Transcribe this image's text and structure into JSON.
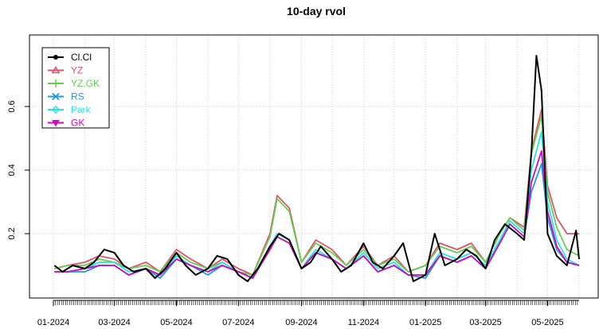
{
  "chart_data": {
    "type": "line",
    "title": "10-day rvol",
    "xlabel": "",
    "ylabel": "",
    "x_ticks": [
      "01-2024",
      "03-2024",
      "05-2024",
      "07-2024",
      "09-2024",
      "11-2024",
      "01-2025",
      "03-2025",
      "05-2025"
    ],
    "x_range": [
      "2024-01-01",
      "2025-06-01"
    ],
    "y_ticks": [
      "0.2",
      "0.4",
      "0.6"
    ],
    "ylim": [
      0.03,
      0.78
    ],
    "grid": true,
    "legend_position": "top-left",
    "series": [
      {
        "name": "Cl.Cl",
        "color": "#000000",
        "key": "cc",
        "points": [
          [
            "2024-01-02",
            0.1
          ],
          [
            "2024-01-10",
            0.08
          ],
          [
            "2024-01-20",
            0.1
          ],
          [
            "2024-02-01",
            0.09
          ],
          [
            "2024-02-10",
            0.11
          ],
          [
            "2024-02-20",
            0.15
          ],
          [
            "2024-03-01",
            0.14
          ],
          [
            "2024-03-10",
            0.1
          ],
          [
            "2024-03-20",
            0.08
          ],
          [
            "2024-04-01",
            0.09
          ],
          [
            "2024-04-10",
            0.06
          ],
          [
            "2024-04-20",
            0.09
          ],
          [
            "2024-05-01",
            0.14
          ],
          [
            "2024-05-10",
            0.1
          ],
          [
            "2024-05-20",
            0.07
          ],
          [
            "2024-06-01",
            0.09
          ],
          [
            "2024-06-10",
            0.13
          ],
          [
            "2024-06-20",
            0.12
          ],
          [
            "2024-07-01",
            0.07
          ],
          [
            "2024-07-10",
            0.05
          ],
          [
            "2024-07-20",
            0.09
          ],
          [
            "2024-08-01",
            0.16
          ],
          [
            "2024-08-10",
            0.2
          ],
          [
            "2024-08-20",
            0.18
          ],
          [
            "2024-09-01",
            0.09
          ],
          [
            "2024-09-10",
            0.11
          ],
          [
            "2024-09-20",
            0.16
          ],
          [
            "2024-10-01",
            0.12
          ],
          [
            "2024-10-10",
            0.08
          ],
          [
            "2024-10-20",
            0.1
          ],
          [
            "2024-11-01",
            0.17
          ],
          [
            "2024-11-10",
            0.11
          ],
          [
            "2024-11-20",
            0.09
          ],
          [
            "2024-12-01",
            0.13
          ],
          [
            "2024-12-10",
            0.17
          ],
          [
            "2024-12-20",
            0.05
          ],
          [
            "2025-01-01",
            0.07
          ],
          [
            "2025-01-10",
            0.2
          ],
          [
            "2025-01-20",
            0.1
          ],
          [
            "2025-02-01",
            0.12
          ],
          [
            "2025-02-10",
            0.15
          ],
          [
            "2025-02-20",
            0.13
          ],
          [
            "2025-03-01",
            0.09
          ],
          [
            "2025-03-10",
            0.18
          ],
          [
            "2025-03-20",
            0.23
          ],
          [
            "2025-04-01",
            0.2
          ],
          [
            "2025-04-08",
            0.18
          ],
          [
            "2025-04-15",
            0.45
          ],
          [
            "2025-04-20",
            0.76
          ],
          [
            "2025-04-25",
            0.65
          ],
          [
            "2025-05-01",
            0.2
          ],
          [
            "2025-05-10",
            0.13
          ],
          [
            "2025-05-20",
            0.1
          ],
          [
            "2025-05-29",
            0.21
          ],
          [
            "2025-06-01",
            0.12
          ]
        ]
      },
      {
        "name": "YZ",
        "color": "#DF536B",
        "key": "yz",
        "points": [
          [
            "2024-01-02",
            0.09
          ],
          [
            "2024-01-15",
            0.1
          ],
          [
            "2024-02-01",
            0.11
          ],
          [
            "2024-02-15",
            0.13
          ],
          [
            "2024-03-01",
            0.12
          ],
          [
            "2024-03-15",
            0.09
          ],
          [
            "2024-04-01",
            0.11
          ],
          [
            "2024-04-15",
            0.08
          ],
          [
            "2024-05-01",
            0.15
          ],
          [
            "2024-05-15",
            0.12
          ],
          [
            "2024-06-01",
            0.09
          ],
          [
            "2024-06-15",
            0.12
          ],
          [
            "2024-07-01",
            0.09
          ],
          [
            "2024-07-15",
            0.07
          ],
          [
            "2024-08-01",
            0.2
          ],
          [
            "2024-08-08",
            0.32
          ],
          [
            "2024-08-20",
            0.28
          ],
          [
            "2024-09-01",
            0.11
          ],
          [
            "2024-09-15",
            0.18
          ],
          [
            "2024-10-01",
            0.15
          ],
          [
            "2024-10-15",
            0.1
          ],
          [
            "2024-11-01",
            0.16
          ],
          [
            "2024-11-15",
            0.1
          ],
          [
            "2024-12-01",
            0.13
          ],
          [
            "2024-12-15",
            0.08
          ],
          [
            "2025-01-01",
            0.1
          ],
          [
            "2025-01-15",
            0.17
          ],
          [
            "2025-02-01",
            0.15
          ],
          [
            "2025-02-15",
            0.17
          ],
          [
            "2025-03-01",
            0.11
          ],
          [
            "2025-03-15",
            0.2
          ],
          [
            "2025-03-25",
            0.25
          ],
          [
            "2025-04-08",
            0.22
          ],
          [
            "2025-04-15",
            0.46
          ],
          [
            "2025-04-25",
            0.59
          ],
          [
            "2025-05-01",
            0.35
          ],
          [
            "2025-05-10",
            0.25
          ],
          [
            "2025-05-20",
            0.2
          ],
          [
            "2025-06-01",
            0.2
          ]
        ]
      },
      {
        "name": "YZ.GK",
        "color": "#61D04F",
        "key": "yzgk",
        "points": [
          [
            "2024-01-02",
            0.09
          ],
          [
            "2024-01-15",
            0.1
          ],
          [
            "2024-02-01",
            0.1
          ],
          [
            "2024-02-15",
            0.12
          ],
          [
            "2024-03-01",
            0.11
          ],
          [
            "2024-03-15",
            0.09
          ],
          [
            "2024-04-01",
            0.1
          ],
          [
            "2024-04-15",
            0.08
          ],
          [
            "2024-05-01",
            0.14
          ],
          [
            "2024-05-15",
            0.11
          ],
          [
            "2024-06-01",
            0.09
          ],
          [
            "2024-06-15",
            0.11
          ],
          [
            "2024-07-01",
            0.08
          ],
          [
            "2024-07-15",
            0.07
          ],
          [
            "2024-08-01",
            0.19
          ],
          [
            "2024-08-08",
            0.31
          ],
          [
            "2024-08-20",
            0.27
          ],
          [
            "2024-09-01",
            0.11
          ],
          [
            "2024-09-15",
            0.17
          ],
          [
            "2024-10-01",
            0.14
          ],
          [
            "2024-10-15",
            0.1
          ],
          [
            "2024-11-01",
            0.15
          ],
          [
            "2024-11-15",
            0.1
          ],
          [
            "2024-12-01",
            0.12
          ],
          [
            "2024-12-15",
            0.08
          ],
          [
            "2025-01-01",
            0.1
          ],
          [
            "2025-01-15",
            0.16
          ],
          [
            "2025-02-01",
            0.14
          ],
          [
            "2025-02-15",
            0.16
          ],
          [
            "2025-03-01",
            0.11
          ],
          [
            "2025-03-15",
            0.2
          ],
          [
            "2025-03-25",
            0.25
          ],
          [
            "2025-04-08",
            0.21
          ],
          [
            "2025-04-15",
            0.45
          ],
          [
            "2025-04-25",
            0.57
          ],
          [
            "2025-05-01",
            0.33
          ],
          [
            "2025-05-10",
            0.22
          ],
          [
            "2025-05-20",
            0.15
          ],
          [
            "2025-06-01",
            0.13
          ]
        ]
      },
      {
        "name": "RS",
        "color": "#2297E6",
        "key": "rs",
        "points": [
          [
            "2024-01-02",
            0.08
          ],
          [
            "2024-01-15",
            0.08
          ],
          [
            "2024-02-01",
            0.08
          ],
          [
            "2024-02-15",
            0.1
          ],
          [
            "2024-03-01",
            0.1
          ],
          [
            "2024-03-15",
            0.07
          ],
          [
            "2024-04-01",
            0.09
          ],
          [
            "2024-04-15",
            0.06
          ],
          [
            "2024-05-01",
            0.12
          ],
          [
            "2024-05-15",
            0.1
          ],
          [
            "2024-06-01",
            0.07
          ],
          [
            "2024-06-15",
            0.1
          ],
          [
            "2024-07-01",
            0.08
          ],
          [
            "2024-07-15",
            0.06
          ],
          [
            "2024-08-01",
            0.15
          ],
          [
            "2024-08-08",
            0.19
          ],
          [
            "2024-08-20",
            0.17
          ],
          [
            "2024-09-01",
            0.09
          ],
          [
            "2024-09-15",
            0.14
          ],
          [
            "2024-10-01",
            0.12
          ],
          [
            "2024-10-15",
            0.09
          ],
          [
            "2024-11-01",
            0.13
          ],
          [
            "2024-11-15",
            0.08
          ],
          [
            "2024-12-01",
            0.1
          ],
          [
            "2024-12-15",
            0.07
          ],
          [
            "2025-01-01",
            0.06
          ],
          [
            "2025-01-15",
            0.13
          ],
          [
            "2025-02-01",
            0.11
          ],
          [
            "2025-02-15",
            0.13
          ],
          [
            "2025-03-01",
            0.09
          ],
          [
            "2025-03-15",
            0.17
          ],
          [
            "2025-03-25",
            0.23
          ],
          [
            "2025-04-08",
            0.19
          ],
          [
            "2025-04-15",
            0.33
          ],
          [
            "2025-04-25",
            0.42
          ],
          [
            "2025-05-01",
            0.25
          ],
          [
            "2025-05-10",
            0.15
          ],
          [
            "2025-05-20",
            0.11
          ],
          [
            "2025-06-01",
            0.1
          ]
        ]
      },
      {
        "name": "Park",
        "color": "#28E2E5",
        "key": "park",
        "points": [
          [
            "2024-01-02",
            0.08
          ],
          [
            "2024-01-15",
            0.08
          ],
          [
            "2024-02-01",
            0.09
          ],
          [
            "2024-02-15",
            0.11
          ],
          [
            "2024-03-01",
            0.11
          ],
          [
            "2024-03-15",
            0.08
          ],
          [
            "2024-04-01",
            0.09
          ],
          [
            "2024-04-15",
            0.07
          ],
          [
            "2024-05-01",
            0.13
          ],
          [
            "2024-05-15",
            0.1
          ],
          [
            "2024-06-01",
            0.08
          ],
          [
            "2024-06-15",
            0.11
          ],
          [
            "2024-07-01",
            0.08
          ],
          [
            "2024-07-15",
            0.06
          ],
          [
            "2024-08-01",
            0.16
          ],
          [
            "2024-08-08",
            0.2
          ],
          [
            "2024-08-20",
            0.18
          ],
          [
            "2024-09-01",
            0.09
          ],
          [
            "2024-09-15",
            0.15
          ],
          [
            "2024-10-01",
            0.12
          ],
          [
            "2024-10-15",
            0.09
          ],
          [
            "2024-11-01",
            0.14
          ],
          [
            "2024-11-15",
            0.09
          ],
          [
            "2024-12-01",
            0.11
          ],
          [
            "2024-12-15",
            0.07
          ],
          [
            "2025-01-01",
            0.07
          ],
          [
            "2025-01-15",
            0.14
          ],
          [
            "2025-02-01",
            0.12
          ],
          [
            "2025-02-15",
            0.14
          ],
          [
            "2025-03-01",
            0.1
          ],
          [
            "2025-03-15",
            0.18
          ],
          [
            "2025-03-25",
            0.24
          ],
          [
            "2025-04-08",
            0.2
          ],
          [
            "2025-04-15",
            0.4
          ],
          [
            "2025-04-25",
            0.52
          ],
          [
            "2025-05-01",
            0.3
          ],
          [
            "2025-05-10",
            0.18
          ],
          [
            "2025-05-20",
            0.12
          ],
          [
            "2025-06-01",
            0.1
          ]
        ]
      },
      {
        "name": "GK",
        "color": "#CD0BBC",
        "key": "gk",
        "points": [
          [
            "2024-01-02",
            0.08
          ],
          [
            "2024-01-15",
            0.08
          ],
          [
            "2024-02-01",
            0.09
          ],
          [
            "2024-02-15",
            0.1
          ],
          [
            "2024-03-01",
            0.1
          ],
          [
            "2024-03-15",
            0.07
          ],
          [
            "2024-04-01",
            0.09
          ],
          [
            "2024-04-15",
            0.07
          ],
          [
            "2024-05-01",
            0.12
          ],
          [
            "2024-05-15",
            0.1
          ],
          [
            "2024-06-01",
            0.08
          ],
          [
            "2024-06-15",
            0.1
          ],
          [
            "2024-07-01",
            0.08
          ],
          [
            "2024-07-15",
            0.06
          ],
          [
            "2024-08-01",
            0.15
          ],
          [
            "2024-08-08",
            0.19
          ],
          [
            "2024-08-20",
            0.17
          ],
          [
            "2024-09-01",
            0.09
          ],
          [
            "2024-09-15",
            0.14
          ],
          [
            "2024-10-01",
            0.12
          ],
          [
            "2024-10-15",
            0.09
          ],
          [
            "2024-11-01",
            0.13
          ],
          [
            "2024-11-15",
            0.08
          ],
          [
            "2024-12-01",
            0.1
          ],
          [
            "2024-12-15",
            0.07
          ],
          [
            "2025-01-01",
            0.07
          ],
          [
            "2025-01-15",
            0.13
          ],
          [
            "2025-02-01",
            0.11
          ],
          [
            "2025-02-15",
            0.13
          ],
          [
            "2025-03-01",
            0.09
          ],
          [
            "2025-03-15",
            0.17
          ],
          [
            "2025-03-25",
            0.23
          ],
          [
            "2025-04-08",
            0.19
          ],
          [
            "2025-04-15",
            0.36
          ],
          [
            "2025-04-25",
            0.46
          ],
          [
            "2025-05-01",
            0.27
          ],
          [
            "2025-05-10",
            0.16
          ],
          [
            "2025-05-20",
            0.11
          ],
          [
            "2025-06-01",
            0.1
          ]
        ]
      }
    ]
  }
}
